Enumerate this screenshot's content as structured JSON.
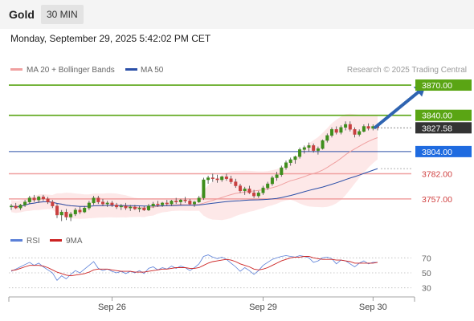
{
  "header": {
    "instrument": "Gold",
    "timeframe": "30 MIN",
    "datetime": "Monday, September 29, 2025 5:42:02 PM CET"
  },
  "legend": {
    "ma20": "MA 20 + Bollinger Bands",
    "ma50": "MA 50",
    "copyright": "Research © 2025 Trading Central",
    "rsi": "RSI",
    "rsi_ma": "9MA"
  },
  "colors": {
    "green": "#5aa514",
    "blue": "#2b4fa8",
    "red_line": "#f0a0a0",
    "red_text": "#d04040",
    "band_fill": "#fde2e2",
    "candle_up": "#3e8e1c",
    "candle_down": "#c94040",
    "arrow": "#2f64b1",
    "last_bg": "#333333",
    "support_label_bg": "#1f6be0",
    "rsi_line": "#5b80d8",
    "rsi_ma_line": "#cc2222"
  },
  "chart_data": {
    "type": "candlestick",
    "ylim": [
      3733,
      3878
    ],
    "x_ticks": [
      {
        "label": "Sep 26",
        "index": 22
      },
      {
        "label": "Sep 29",
        "index": 55
      },
      {
        "label": "Sep 30",
        "index": 79
      }
    ],
    "levels": [
      {
        "value": 3870.0,
        "label": "3870.00",
        "kind": "target"
      },
      {
        "value": 3840.0,
        "label": "3840.00",
        "kind": "resistance"
      },
      {
        "value": 3804.0,
        "label": "3804.00",
        "kind": "pivot"
      },
      {
        "value": 3782.0,
        "label": "3782.00",
        "kind": "support"
      },
      {
        "value": 3757.0,
        "label": "3757.00",
        "kind": "support"
      }
    ],
    "last_price": {
      "value": 3827.58,
      "label": "3827.58"
    },
    "arrow": {
      "from": {
        "index": 80,
        "value": 3828
      },
      "to": {
        "index": 90,
        "value": 3870
      }
    },
    "candles": [
      [
        3749,
        3752,
        3746,
        3750
      ],
      [
        3750,
        3753,
        3747,
        3748
      ],
      [
        3748,
        3752,
        3746,
        3751
      ],
      [
        3751,
        3756,
        3749,
        3754
      ],
      [
        3754,
        3760,
        3752,
        3758
      ],
      [
        3758,
        3761,
        3754,
        3756
      ],
      [
        3756,
        3760,
        3753,
        3759
      ],
      [
        3759,
        3761,
        3755,
        3757
      ],
      [
        3757,
        3759,
        3752,
        3754
      ],
      [
        3754,
        3756,
        3748,
        3750
      ],
      [
        3750,
        3752,
        3738,
        3741
      ],
      [
        3741,
        3746,
        3735,
        3744
      ],
      [
        3744,
        3747,
        3736,
        3739
      ],
      [
        3739,
        3744,
        3735,
        3742
      ],
      [
        3742,
        3748,
        3740,
        3746
      ],
      [
        3746,
        3749,
        3742,
        3744
      ],
      [
        3744,
        3750,
        3743,
        3748
      ],
      [
        3748,
        3755,
        3746,
        3753
      ],
      [
        3753,
        3760,
        3751,
        3758
      ],
      [
        3758,
        3760,
        3752,
        3754
      ],
      [
        3754,
        3757,
        3750,
        3752
      ],
      [
        3752,
        3755,
        3749,
        3753
      ],
      [
        3753,
        3755,
        3749,
        3751
      ],
      [
        3751,
        3753,
        3747,
        3749
      ],
      [
        3749,
        3752,
        3746,
        3750
      ],
      [
        3750,
        3753,
        3746,
        3748
      ],
      [
        3748,
        3751,
        3745,
        3749
      ],
      [
        3749,
        3751,
        3746,
        3747
      ],
      [
        3747,
        3750,
        3744,
        3748
      ],
      [
        3748,
        3750,
        3745,
        3746
      ],
      [
        3746,
        3752,
        3745,
        3750
      ],
      [
        3750,
        3754,
        3748,
        3752
      ],
      [
        3752,
        3755,
        3749,
        3751
      ],
      [
        3751,
        3754,
        3749,
        3753
      ],
      [
        3753,
        3756,
        3750,
        3752
      ],
      [
        3752,
        3756,
        3750,
        3755
      ],
      [
        3755,
        3758,
        3752,
        3754
      ],
      [
        3754,
        3757,
        3751,
        3756
      ],
      [
        3756,
        3759,
        3753,
        3755
      ],
      [
        3755,
        3757,
        3751,
        3752
      ],
      [
        3752,
        3755,
        3749,
        3754
      ],
      [
        3754,
        3760,
        3753,
        3758
      ],
      [
        3758,
        3778,
        3756,
        3776
      ],
      [
        3776,
        3780,
        3772,
        3778
      ],
      [
        3778,
        3782,
        3774,
        3777
      ],
      [
        3777,
        3781,
        3773,
        3776
      ],
      [
        3776,
        3780,
        3774,
        3779
      ],
      [
        3779,
        3782,
        3775,
        3777
      ],
      [
        3777,
        3780,
        3772,
        3774
      ],
      [
        3774,
        3777,
        3768,
        3770
      ],
      [
        3770,
        3772,
        3763,
        3765
      ],
      [
        3765,
        3769,
        3761,
        3767
      ],
      [
        3767,
        3770,
        3762,
        3763
      ],
      [
        3763,
        3766,
        3758,
        3760
      ],
      [
        3760,
        3765,
        3758,
        3763
      ],
      [
        3763,
        3770,
        3761,
        3768
      ],
      [
        3768,
        3774,
        3766,
        3772
      ],
      [
        3772,
        3780,
        3770,
        3778
      ],
      [
        3778,
        3784,
        3775,
        3781
      ],
      [
        3781,
        3790,
        3779,
        3788
      ],
      [
        3788,
        3795,
        3786,
        3793
      ],
      [
        3793,
        3798,
        3790,
        3796
      ],
      [
        3796,
        3800,
        3792,
        3799
      ],
      [
        3799,
        3808,
        3797,
        3806
      ],
      [
        3806,
        3810,
        3802,
        3808
      ],
      [
        3808,
        3813,
        3804,
        3810
      ],
      [
        3810,
        3812,
        3803,
        3805
      ],
      [
        3805,
        3809,
        3801,
        3807
      ],
      [
        3807,
        3816,
        3806,
        3815
      ],
      [
        3815,
        3822,
        3813,
        3820
      ],
      [
        3820,
        3828,
        3818,
        3826
      ],
      [
        3826,
        3829,
        3821,
        3823
      ],
      [
        3823,
        3830,
        3821,
        3828
      ],
      [
        3828,
        3834,
        3825,
        3831
      ],
      [
        3831,
        3834,
        3824,
        3826
      ],
      [
        3826,
        3828,
        3818,
        3821
      ],
      [
        3821,
        3826,
        3819,
        3824
      ],
      [
        3824,
        3831,
        3823,
        3829
      ],
      [
        3829,
        3832,
        3825,
        3827
      ],
      [
        3827,
        3831,
        3825,
        3829
      ],
      [
        3829,
        3832,
        3825,
        3827.58
      ]
    ],
    "rsi": {
      "levels": [
        70,
        50,
        30
      ],
      "ylim": [
        20,
        80
      ],
      "rsi_values": [
        52,
        55,
        58,
        61,
        64,
        60,
        63,
        58,
        54,
        50,
        40,
        46,
        42,
        48,
        53,
        50,
        55,
        60,
        65,
        56,
        53,
        55,
        52,
        50,
        52,
        49,
        52,
        50,
        53,
        49,
        56,
        58,
        54,
        57,
        55,
        59,
        56,
        59,
        57,
        53,
        57,
        62,
        72,
        74,
        71,
        69,
        71,
        68,
        63,
        58,
        52,
        57,
        53,
        48,
        53,
        60,
        64,
        68,
        70,
        72,
        73,
        72,
        71,
        73,
        72,
        70,
        64,
        66,
        70,
        71,
        69,
        62,
        67,
        66,
        62,
        58,
        63,
        66,
        62,
        64,
        64
      ],
      "ma_values": [
        53,
        54,
        56,
        58,
        60,
        60,
        60,
        59,
        57,
        54,
        51,
        49,
        47,
        46,
        47,
        48,
        49,
        51,
        54,
        55,
        55,
        55,
        54,
        53,
        52,
        52,
        52,
        51,
        51,
        51,
        52,
        53,
        54,
        55,
        55,
        56,
        57,
        57,
        57,
        56,
        56,
        57,
        60,
        63,
        65,
        66,
        67,
        68,
        67,
        65,
        62,
        60,
        58,
        55,
        54,
        55,
        57,
        60,
        63,
        66,
        68,
        70,
        71,
        71,
        72,
        72,
        70,
        69,
        68,
        68,
        68,
        67,
        67,
        66,
        65,
        63,
        63,
        63,
        63,
        63,
        64
      ]
    }
  }
}
